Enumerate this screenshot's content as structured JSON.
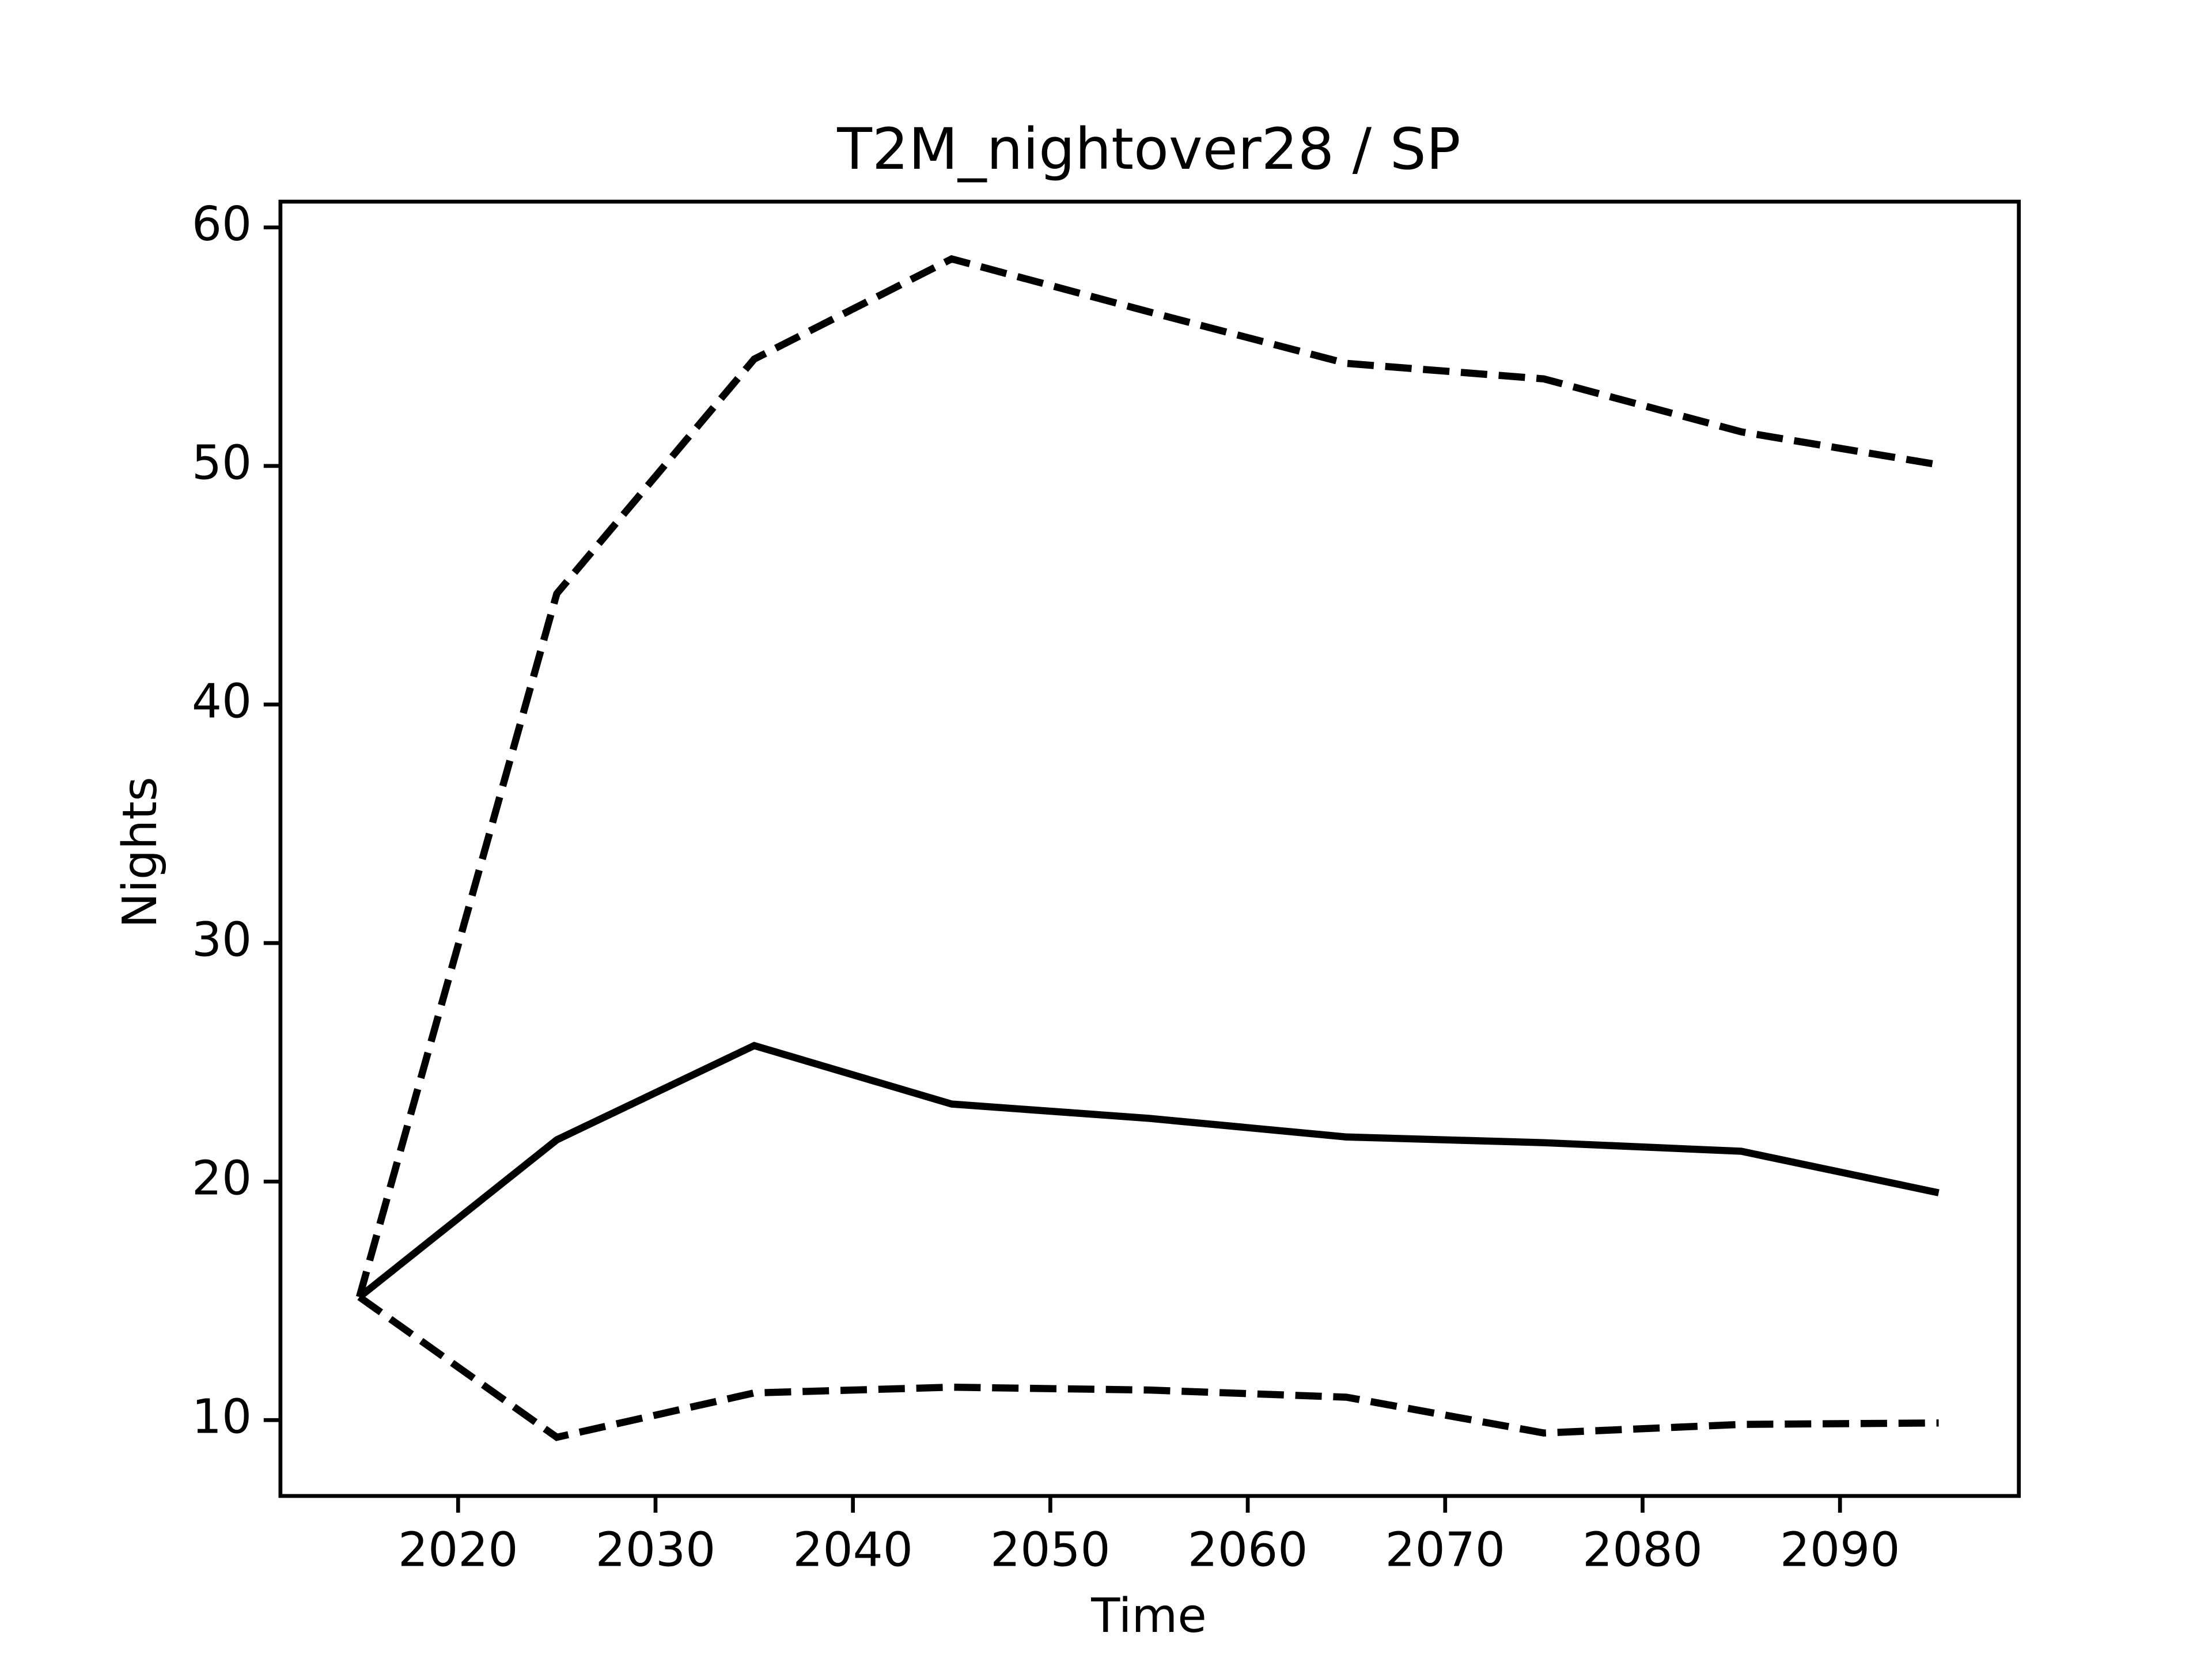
{
  "chart_data": {
    "type": "line",
    "title": "T2M_nightover28 / SP",
    "x_label": "Time",
    "y_label": "Nights",
    "x": [
      2015,
      2025,
      2035,
      2045,
      2055,
      2065,
      2075,
      2085,
      2095
    ],
    "series": [
      {
        "color": "#000000",
        "style": "solid",
        "values": [
          15.16,
          21.75,
          25.7,
          23.25,
          22.65,
          21.87,
          21.63,
          21.27,
          19.53
        ]
      },
      {
        "color": "#000000",
        "style": "dashed",
        "values": [
          15.16,
          44.65,
          54.48,
          58.68,
          56.46,
          54.3,
          53.65,
          51.43,
          50.05
        ]
      },
      {
        "color": "#000000",
        "style": "dashed",
        "values": [
          15.16,
          9.28,
          11.14,
          11.38,
          11.26,
          10.96,
          9.46,
          9.82,
          9.88
        ]
      }
    ],
    "xlim": [
      2011.0,
      2099.06
    ],
    "xticks": [
      2020,
      2030,
      2040,
      2050,
      2060,
      2070,
      2080,
      2090
    ],
    "ylim": [
      6.82,
      61.08
    ],
    "yticks": [
      10,
      20,
      30,
      40,
      50,
      60
    ],
    "grid": false
  }
}
